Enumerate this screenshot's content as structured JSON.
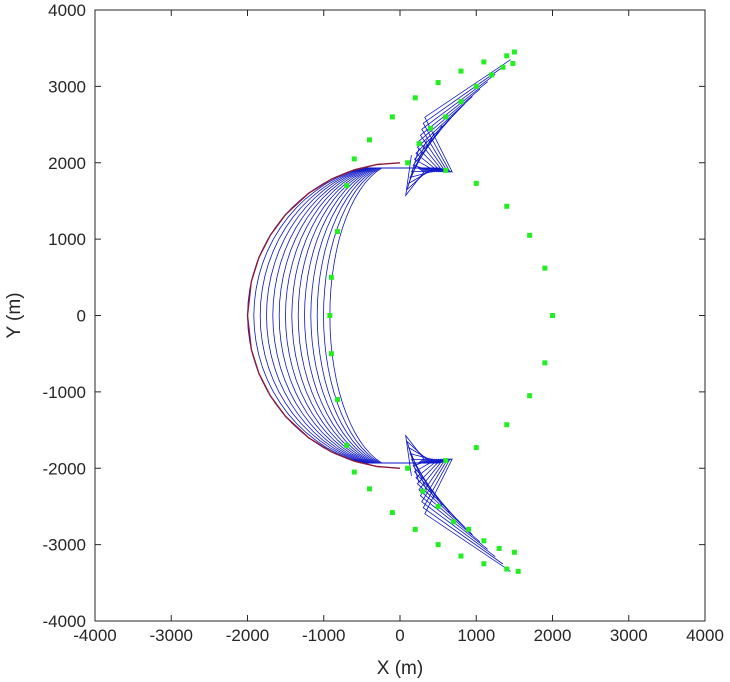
{
  "chart_data": {
    "type": "line",
    "title": "",
    "xlabel": "X (m)",
    "ylabel": "Y (m)",
    "xlim": [
      -4000,
      4000
    ],
    "ylim": [
      -4000,
      4000
    ],
    "xticks": [
      -4000,
      -3000,
      -2000,
      -1000,
      0,
      1000,
      2000,
      3000,
      4000
    ],
    "yticks": [
      -4000,
      -3000,
      -2000,
      -1000,
      0,
      1000,
      2000,
      3000,
      4000
    ],
    "xtick_labels": [
      "-4000",
      "-3000",
      "-2000",
      "-1000",
      "0",
      "1000",
      "2000",
      "3000",
      "4000"
    ],
    "ytick_labels": [
      "-4000",
      "-3000",
      "-2000",
      "-1000",
      "0",
      "1000",
      "2000",
      "3000",
      "4000"
    ],
    "grid": false,
    "series": [
      {
        "style": "line",
        "color": "#8b1a3a",
        "points": [
          [
            0,
            2000
          ],
          [
            -300,
            1977
          ],
          [
            -600,
            1908
          ],
          [
            -900,
            1786
          ],
          [
            -1200,
            1600
          ],
          [
            -1500,
            1323
          ],
          [
            -1700,
            1053
          ],
          [
            -1850,
            760
          ],
          [
            -1950,
            444
          ],
          [
            -2000,
            0
          ],
          [
            -1950,
            -444
          ],
          [
            -1850,
            -760
          ],
          [
            -1700,
            -1053
          ],
          [
            -1500,
            -1323
          ],
          [
            -1200,
            -1600
          ],
          [
            -900,
            -1786
          ],
          [
            -600,
            -1908
          ],
          [
            -300,
            -1977
          ],
          [
            0,
            -2000
          ]
        ]
      },
      {
        "style": "markers",
        "color": "#22ee22",
        "points": [
          [
            1500,
            3450
          ],
          [
            1480,
            3300
          ],
          [
            1350,
            3250
          ],
          [
            1200,
            3150
          ],
          [
            1000,
            3000
          ],
          [
            800,
            2800
          ],
          [
            600,
            2600
          ],
          [
            400,
            2450
          ],
          [
            250,
            2250
          ],
          [
            100,
            2000
          ],
          [
            600,
            1900
          ],
          [
            1000,
            1730
          ],
          [
            1400,
            1430
          ],
          [
            1700,
            1050
          ],
          [
            1900,
            620
          ],
          [
            2000,
            0
          ],
          [
            1900,
            -620
          ],
          [
            1700,
            -1050
          ],
          [
            1400,
            -1430
          ],
          [
            1000,
            -1730
          ],
          [
            600,
            -1900
          ],
          [
            100,
            -2000
          ],
          [
            300,
            -2300
          ],
          [
            500,
            -2500
          ],
          [
            700,
            -2700
          ],
          [
            900,
            -2800
          ],
          [
            1100,
            -2950
          ],
          [
            1300,
            -3050
          ],
          [
            1500,
            -3100
          ],
          [
            1550,
            -3350
          ],
          [
            1400,
            -3320
          ],
          [
            1100,
            -3250
          ],
          [
            800,
            -3150
          ],
          [
            500,
            -3000
          ],
          [
            200,
            -2800
          ],
          [
            -100,
            -2580
          ],
          [
            -400,
            -2270
          ],
          [
            -600,
            -2050
          ],
          [
            -700,
            -1700
          ],
          [
            -820,
            -1100
          ],
          [
            -900,
            -500
          ],
          [
            -920,
            0
          ],
          [
            -900,
            500
          ],
          [
            -820,
            1100
          ],
          [
            -700,
            1700
          ],
          [
            -600,
            2050
          ],
          [
            -400,
            2300
          ],
          [
            -100,
            2600
          ],
          [
            200,
            2850
          ],
          [
            500,
            3050
          ],
          [
            800,
            3200
          ],
          [
            1100,
            3320
          ],
          [
            1400,
            3400
          ]
        ]
      }
    ],
    "fan_curves": {
      "color": "#0a14c8",
      "count": 14
    }
  }
}
